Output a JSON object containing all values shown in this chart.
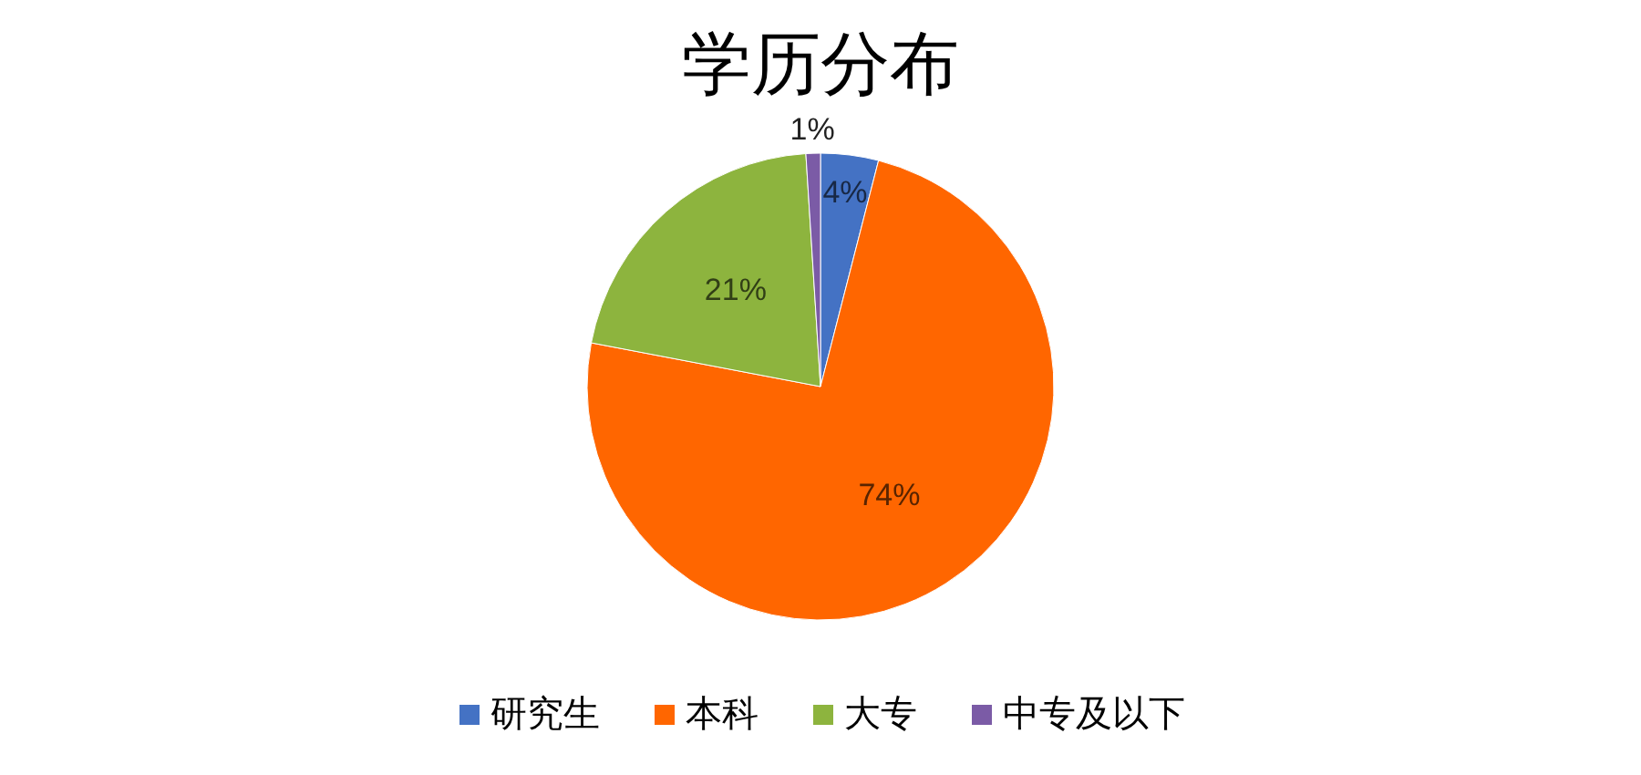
{
  "chart_data": {
    "type": "pie",
    "title": "学历分布",
    "categories": [
      "研究生",
      "本科",
      "大专",
      "中专及以下"
    ],
    "values": [
      4,
      74,
      21,
      1
    ],
    "colors": [
      "#4472c4",
      "#ff6600",
      "#8db43e",
      "#7b5ba6"
    ],
    "value_labels": [
      "4%",
      "74%",
      "21%",
      "1%"
    ],
    "legend": "bottom"
  }
}
